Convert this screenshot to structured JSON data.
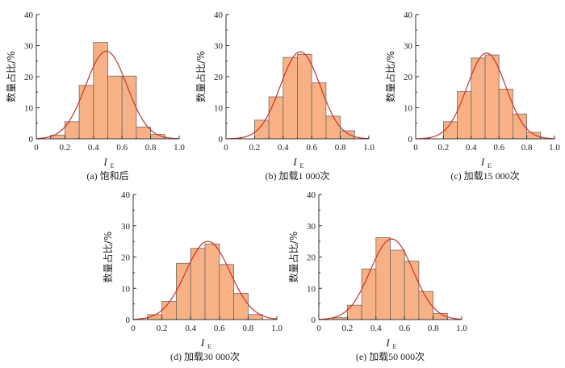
{
  "colors": {
    "bar": "#F8B184",
    "curve": "#C8322B",
    "axis": "#333333"
  },
  "axis_text": {
    "ylabel": "数量占比/%",
    "xlabel_main": "I",
    "xlabel_sub": "E"
  },
  "chart_data": [
    {
      "type": "bar",
      "caption": "(a) 饱和后",
      "x_bin_centers": [
        0.15,
        0.25,
        0.35,
        0.45,
        0.55,
        0.65,
        0.75,
        0.85
      ],
      "values": [
        1.2,
        5.5,
        17.2,
        31.0,
        20.2,
        20.2,
        3.8,
        1.4
      ],
      "normal_fit": {
        "mean": 0.49,
        "sd": 0.145,
        "peak": 28.2
      },
      "xlim": [
        0,
        1.0
      ],
      "ylim": [
        0,
        40
      ],
      "xticks": [
        "0",
        "0.2",
        "0.4",
        "0.6",
        "0.8",
        "1.0"
      ],
      "yticks": [
        "0",
        "10",
        "20",
        "30",
        "40"
      ],
      "xlabel": "I_E",
      "ylabel": "数量占比/%"
    },
    {
      "type": "bar",
      "caption": "(b) 加载1 000次",
      "x_bin_centers": [
        0.25,
        0.35,
        0.45,
        0.55,
        0.65,
        0.75,
        0.85
      ],
      "values": [
        6.0,
        13.5,
        26.2,
        27.2,
        18.0,
        7.3,
        2.6
      ],
      "normal_fit": {
        "mean": 0.52,
        "sd": 0.14,
        "peak": 28.0
      },
      "xlim": [
        0,
        1.0
      ],
      "ylim": [
        0,
        40
      ],
      "xticks": [
        "0",
        "0.2",
        "0.4",
        "0.6",
        "0.8",
        "1.0"
      ],
      "yticks": [
        "0",
        "10",
        "20",
        "30",
        "40"
      ],
      "xlabel": "I_E",
      "ylabel": "数量占比/%"
    },
    {
      "type": "bar",
      "caption": "(c) 加载15 000次",
      "x_bin_centers": [
        0.25,
        0.35,
        0.45,
        0.55,
        0.65,
        0.75,
        0.85
      ],
      "values": [
        5.5,
        15.2,
        26.0,
        27.0,
        16.0,
        8.0,
        2.1
      ],
      "normal_fit": {
        "mean": 0.51,
        "sd": 0.14,
        "peak": 27.6
      },
      "xlim": [
        0,
        1.0
      ],
      "ylim": [
        0,
        40
      ],
      "xticks": [
        "0",
        "0.2",
        "0.4",
        "0.6",
        "0.8",
        "1.0"
      ],
      "yticks": [
        "0",
        "10",
        "20",
        "30",
        "40"
      ],
      "xlabel": "I_E",
      "ylabel": "数量占比/%"
    },
    {
      "type": "bar",
      "caption": "(d) 加载30 000次",
      "x_bin_centers": [
        0.15,
        0.25,
        0.35,
        0.45,
        0.55,
        0.65,
        0.75,
        0.85
      ],
      "values": [
        1.6,
        5.8,
        18.0,
        22.8,
        24.2,
        17.6,
        8.4,
        1.6
      ],
      "normal_fit": {
        "mean": 0.52,
        "sd": 0.155,
        "peak": 25.0
      },
      "xlim": [
        0,
        1.0
      ],
      "ylim": [
        0,
        40
      ],
      "xticks": [
        "0",
        "0.2",
        "0.4",
        "0.6",
        "0.8",
        "1.0"
      ],
      "yticks": [
        "0",
        "10",
        "20",
        "30",
        "40"
      ],
      "xlabel": "I_E",
      "ylabel": "数量占比/%"
    },
    {
      "type": "bar",
      "caption": "(e) 加载50 000次",
      "x_bin_centers": [
        0.15,
        0.25,
        0.35,
        0.45,
        0.55,
        0.65,
        0.75,
        0.85
      ],
      "values": [
        0.6,
        4.6,
        16.2,
        26.2,
        22.2,
        18.7,
        9.0,
        2.0
      ],
      "normal_fit": {
        "mean": 0.51,
        "sd": 0.15,
        "peak": 25.8
      },
      "xlim": [
        0,
        1.0
      ],
      "ylim": [
        0,
        40
      ],
      "xticks": [
        "0",
        "0.2",
        "0.4",
        "0.6",
        "0.8",
        "1.0"
      ],
      "yticks": [
        "0",
        "10",
        "20",
        "30",
        "40"
      ],
      "xlabel": "I_E",
      "ylabel": "数量占比/%"
    }
  ]
}
